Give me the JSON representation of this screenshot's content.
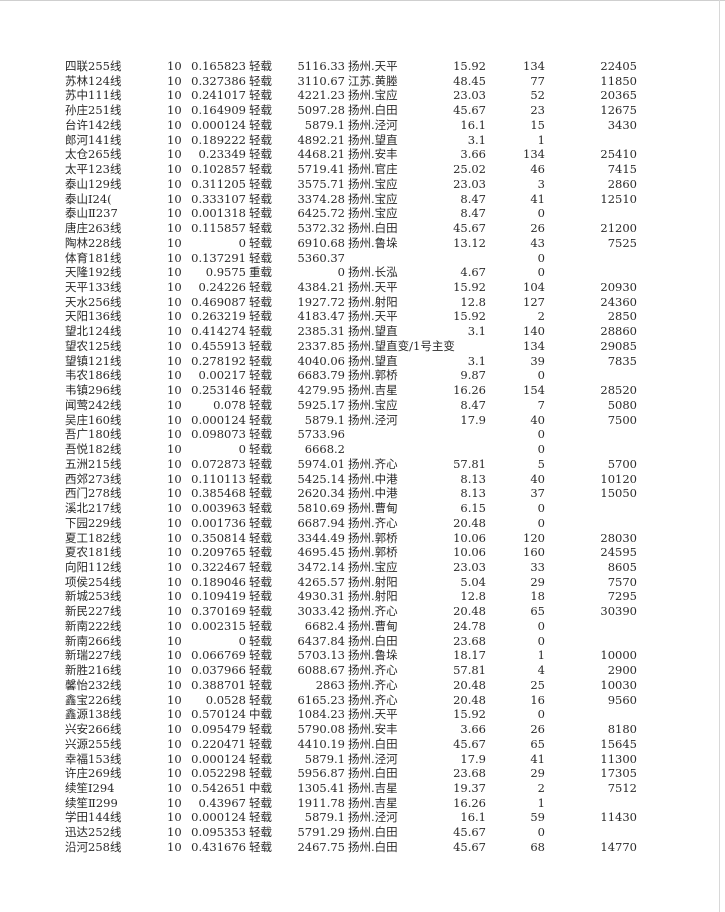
{
  "rows": [
    [
      "四联255线",
      "10",
      "0.165823",
      "轻载",
      "5116.33",
      "扬州.天平",
      "15.92",
      "134",
      "22405"
    ],
    [
      "苏林124线",
      "10",
      "0.327386",
      "轻载",
      "3110.67",
      "江苏.黄塍",
      "48.45",
      "77",
      "11850"
    ],
    [
      "苏中111线",
      "10",
      "0.241017",
      "轻载",
      "4221.23",
      "扬州.宝应",
      "23.03",
      "52",
      "20365"
    ],
    [
      "孙庄251线",
      "10",
      "0.164909",
      "轻载",
      "5097.28",
      "扬州.白田",
      "45.67",
      "23",
      "12675"
    ],
    [
      "台许142线",
      "10",
      "0.000124",
      "轻载",
      "5879.1",
      "扬州.泾河",
      "16.1",
      "15",
      "3430"
    ],
    [
      "郎河141线",
      "10",
      "0.189222",
      "轻载",
      "4892.21",
      "扬州.望直",
      "3.1",
      "1",
      ""
    ],
    [
      "太仓265线",
      "10",
      "0.23349",
      "轻载",
      "4468.21",
      "扬州.安丰",
      "3.66",
      "134",
      "25410"
    ],
    [
      "太平123线",
      "10",
      "0.102857",
      "轻载",
      "5719.41",
      "扬州.官庄",
      "25.02",
      "46",
      "7415"
    ],
    [
      "泰山129线",
      "10",
      "0.311205",
      "轻载",
      "3575.71",
      "扬州.宝应",
      "23.03",
      "3",
      "2860"
    ],
    [
      "泰山Ⅰ24(",
      "10",
      "0.333107",
      "轻载",
      "3374.28",
      "扬州.宝应",
      "8.47",
      "41",
      "12510"
    ],
    [
      "泰山Ⅱ237",
      "10",
      "0.001318",
      "轻载",
      "6425.72",
      "扬州.宝应",
      "8.47",
      "0",
      ""
    ],
    [
      "唐庄263线",
      "10",
      "0.115857",
      "轻载",
      "5372.32",
      "扬州.白田",
      "45.67",
      "26",
      "21200"
    ],
    [
      "陶林228线",
      "10",
      "0",
      "轻载",
      "6910.68",
      "扬州.鲁垛",
      "13.12",
      "43",
      "7525"
    ],
    [
      "体育181线",
      "10",
      "0.137291",
      "轻载",
      "5360.37",
      "",
      "",
      "0",
      ""
    ],
    [
      "天隆192线",
      "10",
      "0.9575",
      "重载",
      "0",
      "扬州.长泓",
      "4.67",
      "0",
      ""
    ],
    [
      "天平133线",
      "10",
      "0.24226",
      "轻载",
      "4384.21",
      "扬州.天平",
      "15.92",
      "104",
      "20930"
    ],
    [
      "天水256线",
      "10",
      "0.469087",
      "轻载",
      "1927.72",
      "扬州.射阳",
      "12.8",
      "127",
      "24360"
    ],
    [
      "天阳136线",
      "10",
      "0.263219",
      "轻载",
      "4183.47",
      "扬州.天平",
      "15.92",
      "2",
      "2850"
    ],
    [
      "望北124线",
      "10",
      "0.414274",
      "轻载",
      "2385.31",
      "扬州.望直",
      "3.1",
      "140",
      "28860"
    ],
    [
      "望农125线",
      "10",
      "0.455913",
      "轻载",
      "2337.85",
      "扬州.望直变/1号主变",
      "",
      "134",
      "29085"
    ],
    [
      "望镇121线",
      "10",
      "0.278192",
      "轻载",
      "4040.06",
      "扬州.望直",
      "3.1",
      "39",
      "7835"
    ],
    [
      "韦农186线",
      "10",
      "0.00217",
      "轻载",
      "6683.79",
      "扬州.郭桥",
      "9.87",
      "0",
      ""
    ],
    [
      "韦镇296线",
      "10",
      "0.253146",
      "轻载",
      "4279.95",
      "扬州.吉星",
      "16.26",
      "154",
      "28520"
    ],
    [
      "闻莺242线",
      "10",
      "0.078",
      "轻载",
      "5925.17",
      "扬州.宝应",
      "8.47",
      "7",
      "5080"
    ],
    [
      "吴庄160线",
      "10",
      "0.000124",
      "轻载",
      "5879.1",
      "扬州.泾河",
      "17.9",
      "40",
      "7500"
    ],
    [
      "吾广180线",
      "10",
      "0.098073",
      "轻载",
      "5733.96",
      "",
      "",
      "0",
      ""
    ],
    [
      "吾悦182线",
      "10",
      "0",
      "轻载",
      "6668.2",
      "",
      "",
      "0",
      ""
    ],
    [
      "五洲215线",
      "10",
      "0.072873",
      "轻载",
      "5974.01",
      "扬州.齐心",
      "57.81",
      "5",
      "5700"
    ],
    [
      "西郊273线",
      "10",
      "0.110113",
      "轻载",
      "5425.14",
      "扬州.中港",
      "8.13",
      "40",
      "10120"
    ],
    [
      "西门278线",
      "10",
      "0.385468",
      "轻载",
      "2620.34",
      "扬州.中港",
      "8.13",
      "37",
      "15050"
    ],
    [
      "溪北217线",
      "10",
      "0.003963",
      "轻载",
      "5810.69",
      "扬州.曹甸",
      "6.15",
      "0",
      ""
    ],
    [
      "下园229线",
      "10",
      "0.001736",
      "轻载",
      "6687.94",
      "扬州.齐心",
      "20.48",
      "0",
      ""
    ],
    [
      "夏工182线",
      "10",
      "0.350814",
      "轻载",
      "3344.49",
      "扬州.郭桥",
      "10.06",
      "120",
      "28030"
    ],
    [
      "夏农181线",
      "10",
      "0.209765",
      "轻载",
      "4695.45",
      "扬州.郭桥",
      "10.06",
      "160",
      "24595"
    ],
    [
      "向阳112线",
      "10",
      "0.322467",
      "轻载",
      "3472.14",
      "扬州.宝应",
      "23.03",
      "33",
      "8605"
    ],
    [
      "项侯254线",
      "10",
      "0.189046",
      "轻载",
      "4265.57",
      "扬州.射阳",
      "5.04",
      "29",
      "7570"
    ],
    [
      "新城253线",
      "10",
      "0.109419",
      "轻载",
      "4930.31",
      "扬州.射阳",
      "12.8",
      "18",
      "7295"
    ],
    [
      "新民227线",
      "10",
      "0.370169",
      "轻载",
      "3033.42",
      "扬州.齐心",
      "20.48",
      "65",
      "30390"
    ],
    [
      "新南222线",
      "10",
      "0.002315",
      "轻载",
      "6682.4",
      "扬州.曹甸",
      "24.78",
      "0",
      ""
    ],
    [
      "新南266线",
      "10",
      "0",
      "轻载",
      "6437.84",
      "扬州.白田",
      "23.68",
      "0",
      ""
    ],
    [
      "新瑞227线",
      "10",
      "0.066769",
      "轻载",
      "5703.13",
      "扬州.鲁垛",
      "18.17",
      "1",
      "10000"
    ],
    [
      "新胜216线",
      "10",
      "0.037966",
      "轻载",
      "6088.67",
      "扬州.齐心",
      "57.81",
      "4",
      "2900"
    ],
    [
      "馨怡232线",
      "10",
      "0.388701",
      "轻载",
      "2863",
      "扬州.齐心",
      "20.48",
      "25",
      "10030"
    ],
    [
      "鑫宝226线",
      "10",
      "0.0528",
      "轻载",
      "6165.23",
      "扬州.齐心",
      "20.48",
      "16",
      "9560"
    ],
    [
      "鑫源138线",
      "10",
      "0.570124",
      "中载",
      "1084.23",
      "扬州.天平",
      "15.92",
      "0",
      ""
    ],
    [
      "兴安266线",
      "10",
      "0.095479",
      "轻载",
      "5790.08",
      "扬州.安丰",
      "3.66",
      "26",
      "8180"
    ],
    [
      "兴源255线",
      "10",
      "0.220471",
      "轻载",
      "4410.19",
      "扬州.白田",
      "45.67",
      "65",
      "15645"
    ],
    [
      "幸福153线",
      "10",
      "0.000124",
      "轻载",
      "5879.1",
      "扬州.泾河",
      "17.9",
      "41",
      "11300"
    ],
    [
      "许庄269线",
      "10",
      "0.052298",
      "轻载",
      "5956.87",
      "扬州.白田",
      "23.68",
      "29",
      "17305"
    ],
    [
      "续笙Ⅰ294",
      "10",
      "0.542651",
      "中载",
      "1305.41",
      "扬州.吉星",
      "19.37",
      "2",
      "7512"
    ],
    [
      "续笙Ⅱ299",
      "10",
      "0.43967",
      "轻载",
      "1911.78",
      "扬州.吉星",
      "16.26",
      "1",
      ""
    ],
    [
      "学田144线",
      "10",
      "0.000124",
      "轻载",
      "5879.1",
      "扬州.泾河",
      "16.1",
      "59",
      "11430"
    ],
    [
      "迅达252线",
      "10",
      "0.095353",
      "轻载",
      "5791.29",
      "扬州.白田",
      "45.67",
      "0",
      ""
    ],
    [
      "沿河258线",
      "10",
      "0.431676",
      "轻载",
      "2467.75",
      "扬州.白田",
      "45.67",
      "68",
      "14770"
    ]
  ]
}
